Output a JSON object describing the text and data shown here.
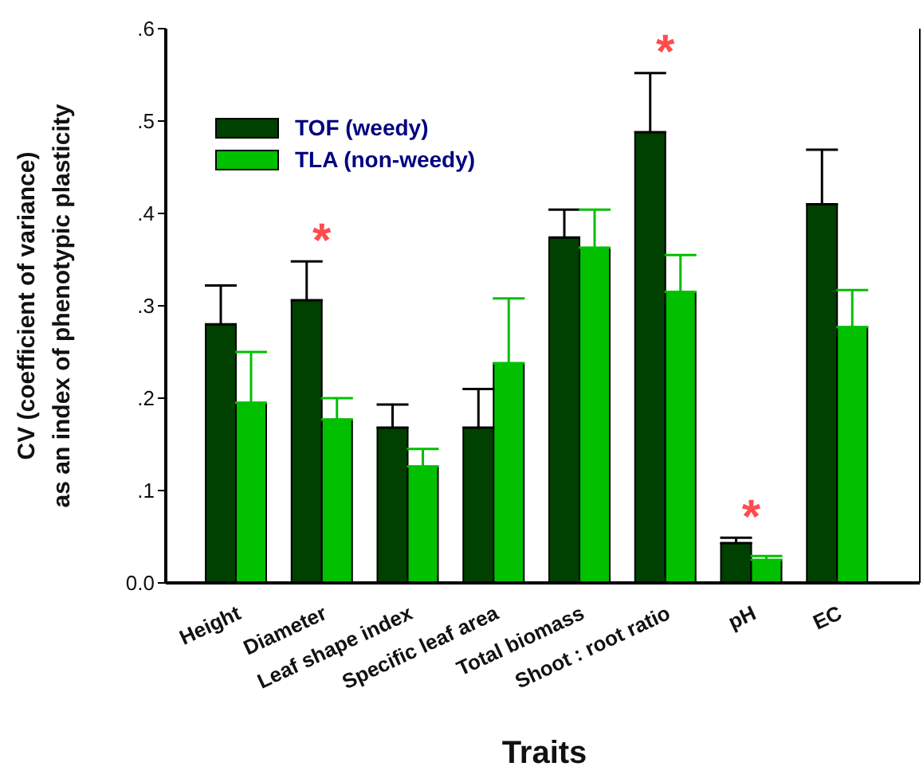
{
  "chart_data": {
    "type": "bar",
    "xlabel": "Traits",
    "ylabel": "CV (coefficient of variance)\nas an index of phenotypic plasticity",
    "categories": [
      "Height",
      "Diameter",
      "Leaf shape index",
      "Specific leaf area",
      "Total biomass",
      "Shoot : root ratio",
      "pH",
      "EC"
    ],
    "series": [
      {
        "name": "TOF (weedy)",
        "color": "#004000",
        "values": [
          0.28,
          0.306,
          0.168,
          0.168,
          0.374,
          0.488,
          0.043,
          0.41
        ],
        "errors": [
          [
            0.28,
            0.322
          ],
          [
            0.306,
            0.348
          ],
          [
            0.168,
            0.193
          ],
          [
            0.168,
            0.21
          ],
          [
            0.374,
            0.404
          ],
          [
            0.488,
            0.552
          ],
          [
            0.043,
            0.049
          ],
          [
            0.41,
            0.469
          ]
        ]
      },
      {
        "name": "TLA (non-weedy)",
        "color": "#00c000",
        "values": [
          0.195,
          0.177,
          0.126,
          0.238,
          0.363,
          0.315,
          0.025,
          0.277
        ],
        "errors": [
          [
            0.195,
            0.25
          ],
          [
            0.177,
            0.2
          ],
          [
            0.126,
            0.145
          ],
          [
            0.238,
            0.308
          ],
          [
            0.363,
            0.404
          ],
          [
            0.315,
            0.355
          ],
          [
            0.025,
            0.029
          ],
          [
            0.277,
            0.317
          ]
        ]
      }
    ],
    "ylim": [
      0,
      0.6
    ],
    "yticks": [
      {
        "value": 0,
        "label": "0.0"
      },
      {
        "value": 0.1,
        "label": ".1"
      },
      {
        "value": 0.2,
        "label": ".2"
      },
      {
        "value": 0.3,
        "label": ".3"
      },
      {
        "value": 0.4,
        "label": ".4"
      },
      {
        "value": 0.5,
        "label": ".5"
      },
      {
        "value": 0.6,
        "label": ".6"
      }
    ],
    "legend": "top left",
    "annotations": [
      "*",
      "*",
      "*"
    ]
  }
}
